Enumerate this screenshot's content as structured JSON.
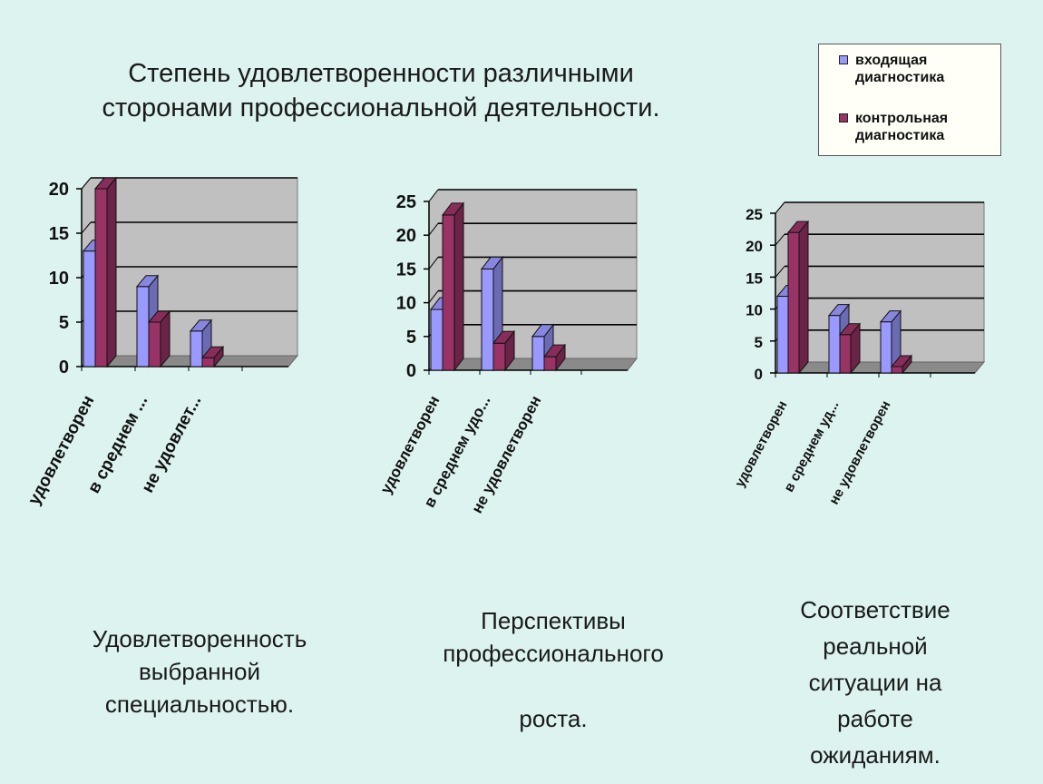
{
  "title_line1": "Степень удовлетворенности различными",
  "title_line2": "сторонами профессиональной деятельности.",
  "legend": [
    {
      "label_line1": "входящая",
      "label_line2": "диагностика",
      "color": "#9999ff"
    },
    {
      "label_line1": "контрольная",
      "label_line2": "диагностика",
      "color": "#993366"
    }
  ],
  "colors": {
    "series1": "#9999ff",
    "series2": "#993366",
    "wall": "#c0c0c0",
    "floor": "#8a8a8a"
  },
  "chart_data": [
    {
      "type": "bar",
      "categories": [
        "удовлетворен",
        "в среднем ...",
        "не удовлет..."
      ],
      "series": [
        {
          "name": "входящая диагностика",
          "values": [
            13,
            9,
            4
          ]
        },
        {
          "name": "контрольная диагностика",
          "values": [
            20,
            5,
            1
          ]
        }
      ],
      "ylim": [
        0,
        20
      ],
      "yticks": [
        "0",
        "5",
        "10",
        "15",
        "20"
      ],
      "grid": true
    },
    {
      "type": "bar",
      "categories": [
        "удовлетворен",
        "в среднем удо...",
        "не удовлетворен"
      ],
      "series": [
        {
          "name": "входящая диагностика",
          "values": [
            9,
            15,
            5
          ]
        },
        {
          "name": "контрольная диагностика",
          "values": [
            23,
            4,
            2
          ]
        }
      ],
      "ylim": [
        0,
        25
      ],
      "yticks": [
        "0",
        "5",
        "10",
        "15",
        "20",
        "25"
      ],
      "grid": true
    },
    {
      "type": "bar",
      "categories": [
        "удовлетворен",
        "в среднем уд...",
        "не удовлетворен"
      ],
      "series": [
        {
          "name": "входящая диагностика",
          "values": [
            12,
            9,
            8
          ]
        },
        {
          "name": "контрольная диагностика",
          "values": [
            22,
            6,
            1
          ]
        }
      ],
      "ylim": [
        0,
        25
      ],
      "yticks": [
        "0",
        "5",
        "10",
        "15",
        "20",
        "25"
      ],
      "grid": true
    }
  ],
  "captions": [
    [
      "Удовлетворенность",
      "выбранной",
      "специальностью."
    ],
    [
      "Перспективы",
      "профессионального",
      "",
      "роста."
    ],
    [
      "Соответствие",
      "реальной",
      "ситуации на",
      "работе",
      "ожиданиям."
    ]
  ]
}
